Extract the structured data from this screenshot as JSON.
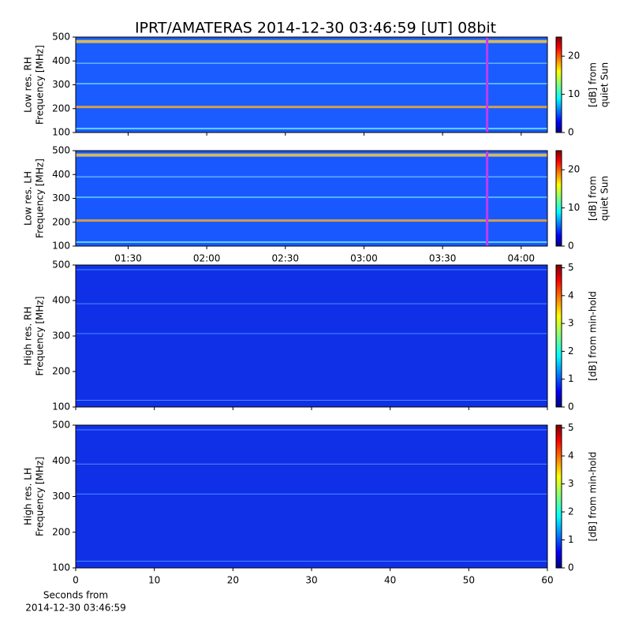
{
  "title": "IPRT/AMATERAS 2014-12-30 03:46:59 [UT]   08bit",
  "chart_data": [
    {
      "type": "heatmap",
      "ylabel": [
        "Low res. RH",
        "Frequency [MHz]"
      ],
      "x_time": true,
      "xlim": [
        "01:10",
        "04:10"
      ],
      "xticks": [
        "01:30",
        "02:00",
        "02:30",
        "03:00",
        "03:30",
        "04:00"
      ],
      "xtick_labels": false,
      "ylim": [
        100,
        500
      ],
      "yticks": [
        100,
        200,
        300,
        400,
        500
      ],
      "cursor": {
        "x": "03:47",
        "color": "#c03cf0"
      },
      "colorbar": {
        "label": [
          "[dB] from",
          "quiet Sun"
        ],
        "lim": [
          0,
          25
        ],
        "ticks": [
          0,
          10,
          20
        ],
        "colormap": "jet"
      }
    },
    {
      "type": "heatmap",
      "ylabel": [
        "Low res. LH",
        "Frequency [MHz]"
      ],
      "x_time": true,
      "xlim": [
        "01:10",
        "04:10"
      ],
      "xticks": [
        "01:30",
        "02:00",
        "02:30",
        "03:00",
        "03:30",
        "04:00"
      ],
      "xtick_labels": true,
      "ylim": [
        100,
        500
      ],
      "yticks": [
        100,
        200,
        300,
        400,
        500
      ],
      "cursor": {
        "x": "03:47",
        "color": "#c03cf0"
      },
      "colorbar": {
        "label": [
          "[dB] from",
          "quiet Sun"
        ],
        "lim": [
          0,
          25
        ],
        "ticks": [
          0,
          10,
          20
        ],
        "colormap": "jet"
      }
    },
    {
      "type": "heatmap",
      "ylabel": [
        "High res. RH",
        "Frequency [MHz]"
      ],
      "x_time": false,
      "xlim": [
        0,
        60
      ],
      "xticks": [
        0,
        10,
        20,
        30,
        40,
        50,
        60
      ],
      "xtick_labels": false,
      "ylim": [
        100,
        500
      ],
      "yticks": [
        100,
        200,
        300,
        400,
        500
      ],
      "colorbar": {
        "label": [
          "[dB] from min-hold"
        ],
        "lim": [
          0,
          5.1
        ],
        "ticks": [
          0,
          1,
          2,
          3,
          4,
          5
        ],
        "colormap": "jet"
      }
    },
    {
      "type": "heatmap",
      "ylabel": [
        "High res. LH",
        "Frequency [MHz]"
      ],
      "x_time": false,
      "xlim": [
        0,
        60
      ],
      "xticks": [
        0,
        10,
        20,
        30,
        40,
        50,
        60
      ],
      "xtick_labels": true,
      "xlabel": [
        "Seconds from",
        "2014-12-30 03:46:59"
      ],
      "ylim": [
        100,
        500
      ],
      "yticks": [
        100,
        200,
        300,
        400,
        500
      ],
      "colorbar": {
        "label": [
          "[dB] from min-hold"
        ],
        "lim": [
          0,
          5.1
        ],
        "ticks": [
          0,
          1,
          2,
          3,
          4,
          5
        ],
        "colormap": "jet"
      }
    }
  ]
}
